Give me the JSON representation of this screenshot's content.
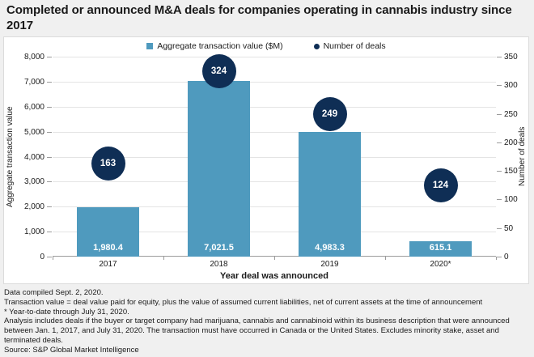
{
  "title": "Completed or announced M&A deals for companies operating in cannabis industry since 2017",
  "legend": {
    "bar_label": "Aggregate transaction value ($M)",
    "deals_label": "Number of deals"
  },
  "colors": {
    "bar": "#4F9ABE",
    "deals": "#0F2E55",
    "page_bg": "#F0F0F0",
    "panel_bg": "#FFFFFF",
    "gridline": "#E4E4E4",
    "axis_line": "#9B9B9B",
    "text": "#1A1A1A"
  },
  "chart_data": {
    "type": "bar",
    "title": "Completed or announced M&A deals for companies operating in cannabis industry since 2017",
    "categories": [
      "2017",
      "2018",
      "2019",
      "2020*"
    ],
    "series": [
      {
        "name": "Aggregate transaction value ($M)",
        "type": "bar",
        "axis": "left",
        "values": [
          1980.4,
          7021.5,
          4983.3,
          615.1
        ],
        "value_labels": [
          "1,980.4",
          "7,021.5",
          "4,983.3",
          "615.1"
        ],
        "color": "#4F9ABE"
      },
      {
        "name": "Number of deals",
        "type": "point",
        "axis": "right",
        "values": [
          163,
          324,
          249,
          124
        ],
        "value_labels": [
          "163",
          "324",
          "249",
          "124"
        ],
        "color": "#0F2E55"
      }
    ],
    "xlabel": "Year deal was announced",
    "ylabel_left": "Aggregate transaction value",
    "ylabel_right": "Number of deals",
    "ylim_left": [
      0,
      8000
    ],
    "ytick_step_left": 1000,
    "ylim_right": [
      0,
      350
    ],
    "ytick_step_right": 50,
    "grid": true,
    "legend_position": "top"
  },
  "footnotes": [
    "Data compiled Sept. 2, 2020.",
    "Transaction value = deal value paid for equity, plus the value of assumed current liabilities, net of current assets at the time of announcement",
    "* Year-to-date through July 31, 2020.",
    "Analysis includes deals if the buyer or target company had marijuana, cannabis and cannabinoid within its business description that were announced between Jan. 1, 2017, and July 31, 2020. The transaction must have occurred in Canada or the United States. Excludes minority stake, asset and terminated deals.",
    "Source: S&P Global Market Intelligence"
  ]
}
